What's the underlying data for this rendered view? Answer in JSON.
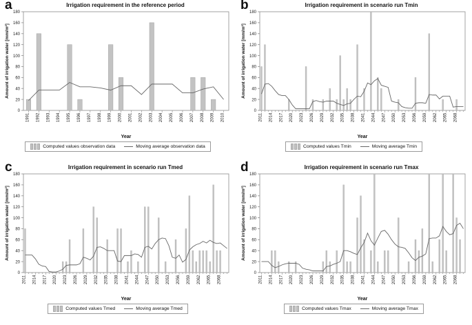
{
  "figure": {
    "colors": {
      "bar": "#c3c3c3",
      "bar_edge": "#a4a4a4",
      "line": "#666666",
      "axis": "#8c8c8c",
      "tick_text": "#222222"
    }
  },
  "chart_data": [
    {
      "type": "bar",
      "panel_letter": "a",
      "title": "Irrigation requirement in the reference period",
      "xlabel": "Year",
      "ylabel": "Amount of irrigation water [mm/m²]",
      "ylim": [
        0,
        180
      ],
      "ytick_step": 20,
      "ytick_labels": [
        0,
        20,
        40,
        60,
        80,
        100,
        120,
        140,
        160,
        180
      ],
      "x_start": 1991,
      "x_end": 2010,
      "xtick_step": 1,
      "xtick_labels": [
        1991,
        1992,
        1993,
        1994,
        1995,
        1996,
        1997,
        1998,
        1999,
        2000,
        2001,
        2002,
        2003,
        2004,
        2005,
        2006,
        2007,
        2008,
        2009,
        2010
      ],
      "grid": false,
      "legend_position": "bottom",
      "bars": [
        20,
        140,
        0,
        0,
        120,
        20,
        0,
        0,
        120,
        60,
        0,
        0,
        160,
        0,
        0,
        0,
        60,
        60,
        20,
        0
      ],
      "line": [
        18,
        37,
        37,
        37,
        51,
        43,
        43,
        41,
        37,
        45,
        45,
        29,
        48,
        48,
        48,
        32,
        32,
        39,
        43,
        20
      ],
      "legend": {
        "bar_label": "Computed values observation data",
        "line_label": "Moving average observation data"
      }
    },
    {
      "type": "bar",
      "panel_letter": "b",
      "title": "Irrigation requirement in scenario run Tmin",
      "xlabel": "Year",
      "ylabel": "Amount of irrigation water [mm/m²]",
      "ylim": [
        0,
        180
      ],
      "ytick_step": 20,
      "ytick_labels": [
        0,
        20,
        40,
        60,
        80,
        100,
        120,
        140,
        160,
        180
      ],
      "x_start": 2011,
      "x_end": 2070,
      "xtick_step": 3,
      "xtick_labels": [
        2011,
        2014,
        2017,
        2020,
        2023,
        2026,
        2029,
        2032,
        2035,
        2038,
        2041,
        2044,
        2047,
        2050,
        2053,
        2056,
        2059,
        2062,
        2065,
        2068
      ],
      "grid": false,
      "legend_position": "bottom",
      "bars": [
        80,
        120,
        0,
        0,
        0,
        0,
        0,
        0,
        20,
        0,
        0,
        0,
        0,
        80,
        0,
        20,
        0,
        0,
        20,
        0,
        40,
        0,
        20,
        100,
        20,
        40,
        20,
        0,
        120,
        0,
        40,
        0,
        180,
        0,
        60,
        40,
        0,
        0,
        0,
        0,
        20,
        0,
        0,
        0,
        0,
        60,
        0,
        0,
        0,
        140,
        0,
        0,
        0,
        20,
        0,
        0,
        0,
        20,
        0,
        0
      ],
      "line": [
        30,
        48,
        49,
        44,
        36,
        29,
        27,
        27,
        20,
        10,
        3,
        3,
        3,
        3,
        3,
        16,
        18,
        16,
        15,
        17,
        17,
        17,
        13,
        11,
        9,
        12,
        13,
        20,
        26,
        25,
        35,
        50,
        47,
        54,
        58,
        46,
        44,
        42,
        17,
        15,
        14,
        7,
        5,
        4,
        4,
        13,
        14,
        14,
        13,
        29,
        28,
        28,
        21,
        26,
        26,
        26,
        6,
        7,
        7,
        7
      ],
      "legend": {
        "bar_label": "Computed values Tmin",
        "line_label": "Moving average Tmin"
      }
    },
    {
      "type": "bar",
      "panel_letter": "c",
      "title": "Irrigation requirement in scenario run Tmed",
      "xlabel": "Year",
      "ylabel": "Amount of irrigation water [mm/m²]",
      "ylim": [
        0,
        180
      ],
      "ytick_step": 20,
      "ytick_labels": [
        0,
        20,
        40,
        60,
        80,
        100,
        120,
        140,
        160,
        180
      ],
      "x_start": 2011,
      "x_end": 2070,
      "xtick_step": 3,
      "xtick_labels": [
        2011,
        2014,
        2017,
        2020,
        2023,
        2026,
        2029,
        2032,
        2035,
        2038,
        2041,
        2044,
        2047,
        2050,
        2053,
        2056,
        2059,
        2062,
        2065,
        2068
      ],
      "grid": false,
      "legend_position": "bottom",
      "bars": [
        80,
        0,
        0,
        0,
        0,
        0,
        0,
        0,
        0,
        0,
        0,
        20,
        20,
        60,
        0,
        0,
        0,
        80,
        0,
        0,
        120,
        100,
        0,
        0,
        60,
        0,
        0,
        80,
        80,
        0,
        20,
        40,
        0,
        20,
        0,
        120,
        120,
        0,
        0,
        100,
        0,
        20,
        0,
        0,
        60,
        0,
        0,
        80,
        140,
        40,
        20,
        40,
        40,
        40,
        20,
        160,
        40,
        40,
        0,
        0
      ],
      "line": [
        32,
        32,
        32,
        25,
        15,
        12,
        11,
        2,
        1,
        1,
        3,
        6,
        13,
        14,
        14,
        14,
        16,
        28,
        26,
        23,
        30,
        46,
        47,
        44,
        40,
        40,
        40,
        21,
        20,
        31,
        31,
        31,
        34,
        33,
        28,
        46,
        48,
        43,
        53,
        60,
        63,
        62,
        49,
        28,
        26,
        32,
        19,
        24,
        41,
        47,
        51,
        53,
        57,
        54,
        59,
        55,
        53,
        54,
        49,
        44
      ],
      "legend": {
        "bar_label": "Computed values Tmed",
        "line_label": "Moving average Tmed"
      }
    },
    {
      "type": "bar",
      "panel_letter": "d",
      "title": "Irrigation requirement in scenario run Tmax",
      "xlabel": "Year",
      "ylabel": "Amount of irrigation water [mm/m²]",
      "ylim": [
        0,
        180
      ],
      "ytick_step": 20,
      "ytick_labels": [
        0,
        20,
        40,
        60,
        80,
        100,
        120,
        140,
        160,
        180
      ],
      "x_start": 2011,
      "x_end": 2070,
      "xtick_step": 3,
      "xtick_labels": [
        2011,
        2014,
        2017,
        2020,
        2023,
        2026,
        2029,
        2032,
        2035,
        2038,
        2041,
        2044,
        2047,
        2050,
        2053,
        2056,
        2059,
        2062,
        2065,
        2068
      ],
      "grid": false,
      "legend_position": "bottom",
      "bars": [
        0,
        0,
        0,
        40,
        40,
        20,
        0,
        0,
        20,
        0,
        20,
        0,
        0,
        0,
        0,
        0,
        0,
        0,
        20,
        40,
        20,
        0,
        40,
        0,
        160,
        20,
        20,
        0,
        100,
        140,
        60,
        0,
        40,
        180,
        20,
        0,
        40,
        40,
        0,
        0,
        100,
        0,
        0,
        20,
        0,
        60,
        40,
        80,
        0,
        180,
        20,
        0,
        60,
        180,
        40,
        0,
        180,
        100,
        60,
        0
      ],
      "line": [
        20,
        20,
        20,
        13,
        9,
        11,
        14,
        16,
        17,
        17,
        17,
        15,
        8,
        6,
        5,
        3,
        3,
        3,
        3,
        11,
        12,
        15,
        17,
        20,
        40,
        40,
        38,
        35,
        33,
        45,
        55,
        72,
        58,
        50,
        63,
        75,
        77,
        70,
        60,
        52,
        47,
        46,
        44,
        36,
        27,
        22,
        28,
        30,
        34,
        62,
        63,
        63,
        67,
        84,
        75,
        69,
        71,
        86,
        90,
        80
      ],
      "legend": {
        "bar_label": "Computed values Tmax",
        "line_label": "Moving average Tmax"
      }
    }
  ]
}
